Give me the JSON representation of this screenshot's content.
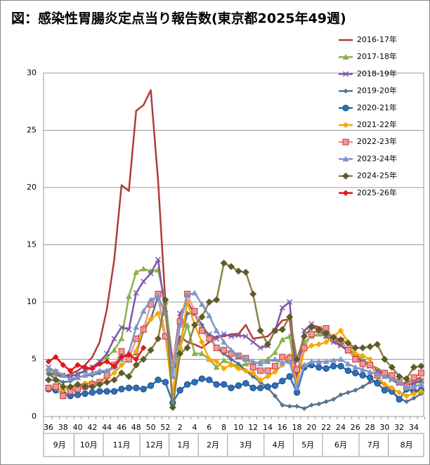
{
  "chart_data": {
    "type": "line",
    "title": "図：感染性胃腸炎定点当り報告数(東京都2025年49週)",
    "categories": [
      "36",
      null,
      "38",
      null,
      "40",
      null,
      "42",
      null,
      "44",
      null,
      "46",
      null,
      "48",
      null,
      "50",
      null,
      "52",
      null,
      "2",
      null,
      "4",
      null,
      "6",
      null,
      "8",
      null,
      "10",
      null,
      "12",
      null,
      "14",
      null,
      "16",
      null,
      "18",
      null,
      "20",
      null,
      "22",
      null,
      "24",
      null,
      "26",
      null,
      "28",
      null,
      "30",
      null,
      "32",
      null,
      "34",
      null
    ],
    "months": [
      "9月",
      "10月",
      "11月",
      "12月",
      "1月",
      "2月",
      "3月",
      "4月",
      "5月",
      "6月",
      "7月",
      "8月"
    ],
    "ylim": [
      0,
      30
    ],
    "yticks": [
      0,
      5,
      10,
      15,
      20,
      25,
      30
    ],
    "grid": true,
    "legend": "right",
    "series": [
      {
        "name": "2016-17年",
        "color": "#b03c3c",
        "marker": "none",
        "values": [
          3.8,
          3.6,
          3.5,
          3.7,
          4.0,
          4.5,
          5.2,
          6.5,
          9.4,
          13.7,
          20.2,
          19.7,
          26.7,
          27.2,
          28.5,
          20.6,
          10.0,
          4.8,
          7.0,
          6.5,
          6.3,
          6.0,
          6.5,
          7.0,
          7.0,
          7.2,
          7.2,
          8.0,
          6.8,
          6.9,
          7.0,
          7.6,
          8.4,
          8.5,
          3.5,
          7.5,
          8.0,
          7.8,
          7.2,
          6.9,
          6.4,
          5.9,
          5.4,
          5.0,
          4.5,
          4.2,
          3.8,
          3.3,
          2.8,
          3.0,
          3.2,
          3.4
        ]
      },
      {
        "name": "2017-18年",
        "color": "#8db14a",
        "marker": "triangle",
        "values": [
          4.0,
          3.8,
          3.6,
          3.5,
          3.7,
          4.0,
          4.3,
          4.7,
          5.2,
          5.8,
          6.8,
          10.5,
          12.6,
          12.9,
          12.7,
          12.8,
          10.0,
          4.5,
          6.0,
          8.0,
          5.5,
          5.5,
          5.0,
          4.3,
          4.9,
          4.6,
          4.4,
          4.6,
          4.6,
          4.8,
          5.0,
          5.6,
          6.7,
          7.0,
          3.0,
          6.5,
          7.0,
          7.2,
          7.0,
          6.7,
          6.3,
          5.8,
          5.4,
          5.0,
          4.5,
          4.1,
          3.8,
          3.4,
          3.0,
          2.8,
          3.0,
          3.2
        ]
      },
      {
        "name": "2018-19年",
        "color": "#7e57a8",
        "marker": "x",
        "values": [
          4.3,
          3.9,
          3.6,
          3.5,
          3.7,
          4.0,
          4.3,
          4.8,
          5.5,
          6.8,
          7.8,
          7.6,
          10.8,
          11.8,
          12.5,
          13.7,
          9.0,
          4.5,
          9.0,
          10.0,
          9.0,
          7.5,
          7.2,
          6.8,
          7.2,
          7.0,
          7.1,
          7.0,
          6.5,
          6.0,
          6.2,
          7.5,
          9.5,
          10.0,
          3.0,
          7.5,
          8.1,
          7.5,
          7.0,
          6.5,
          6.2,
          5.7,
          5.2,
          4.8,
          4.4,
          4.0,
          3.6,
          3.2,
          2.9,
          2.7,
          2.9,
          3.1
        ]
      },
      {
        "name": "2019-20年",
        "color": "#56738f",
        "marker": "smalldiamond",
        "values": [
          3.7,
          3.3,
          3.0,
          3.1,
          3.4,
          3.6,
          3.6,
          3.8,
          4.0,
          4.4,
          5.3,
          5.2,
          5.5,
          7.5,
          8.5,
          10.5,
          7.0,
          2.0,
          6.5,
          9.0,
          9.0,
          8.0,
          7.0,
          6.0,
          5.5,
          5.0,
          4.6,
          4.0,
          3.5,
          3.0,
          2.5,
          1.8,
          1.0,
          0.9,
          0.9,
          0.7,
          1.0,
          1.1,
          1.3,
          1.5,
          1.9,
          2.1,
          2.3,
          2.6,
          3.0,
          3.1,
          2.8,
          2.2,
          1.6,
          1.3,
          1.6,
          2.0
        ]
      },
      {
        "name": "2020-21年",
        "color": "#2e6fb7",
        "marker": "circle",
        "values": [
          2.4,
          2.3,
          2.0,
          1.8,
          1.9,
          2.0,
          2.1,
          2.2,
          2.2,
          2.2,
          2.4,
          2.5,
          2.5,
          2.4,
          2.7,
          3.2,
          3.0,
          1.2,
          2.3,
          2.8,
          3.0,
          3.3,
          3.2,
          2.8,
          2.8,
          2.5,
          2.7,
          2.9,
          2.5,
          2.5,
          2.6,
          2.7,
          3.1,
          3.5,
          2.1,
          4.3,
          4.5,
          4.3,
          4.2,
          4.4,
          4.4,
          4.0,
          3.8,
          3.6,
          3.4,
          2.9,
          2.3,
          2.2,
          1.5,
          2.4,
          2.2,
          2.3
        ]
      },
      {
        "name": "2021-22年",
        "color": "#f5a800",
        "marker": "diamond",
        "values": [
          2.5,
          2.5,
          2.3,
          2.5,
          2.7,
          2.9,
          3.0,
          3.0,
          3.4,
          3.8,
          4.5,
          5.0,
          5.7,
          7.8,
          8.5,
          9.0,
          7.0,
          2.0,
          6.0,
          10.0,
          8.0,
          6.5,
          5.0,
          4.8,
          4.2,
          4.5,
          4.2,
          4.0,
          3.8,
          3.2,
          3.5,
          3.9,
          4.5,
          5.3,
          3.0,
          5.8,
          6.2,
          6.3,
          6.5,
          7.0,
          7.5,
          6.5,
          5.5,
          5.3,
          5.0,
          3.5,
          2.8,
          2.5,
          2.1,
          1.8,
          2.0,
          2.2
        ]
      },
      {
        "name": "2022-23年",
        "color": "#e89a9a",
        "marker": "square",
        "values": [
          2.5,
          2.6,
          1.8,
          2.2,
          2.4,
          2.6,
          2.8,
          3.0,
          3.6,
          4.5,
          5.7,
          5.0,
          6.8,
          7.6,
          9.8,
          10.7,
          7.0,
          4.5,
          8.3,
          10.7,
          9.2,
          7.5,
          6.8,
          6.0,
          5.8,
          5.5,
          5.3,
          5.1,
          4.3,
          4.0,
          4.0,
          4.4,
          5.2,
          5.1,
          4.1,
          6.0,
          7.2,
          7.6,
          7.7,
          6.8,
          6.6,
          5.8,
          5.0,
          4.6,
          4.5,
          3.6,
          3.8,
          3.6,
          3.0,
          2.6,
          3.4,
          3.8
        ]
      },
      {
        "name": "2023-24年",
        "color": "#7f96c6",
        "marker": "triangle",
        "values": [
          4.2,
          4.0,
          3.6,
          3.3,
          3.4,
          3.6,
          3.8,
          4.0,
          4.0,
          4.3,
          5.0,
          5.6,
          7.8,
          9.2,
          10.2,
          10.5,
          9.0,
          3.5,
          8.0,
          10.6,
          10.8,
          9.8,
          8.8,
          7.5,
          6.5,
          5.8,
          5.3,
          5.0,
          4.8,
          4.6,
          4.8,
          5.0,
          4.7,
          4.8,
          2.5,
          4.5,
          4.8,
          4.8,
          4.8,
          4.9,
          5.0,
          4.6,
          4.3,
          4.1,
          3.9,
          3.7,
          3.5,
          3.3,
          3.0,
          2.5,
          2.6,
          2.8
        ]
      },
      {
        "name": "2024-25年",
        "color": "#8b8246",
        "marker": "bigdiamond",
        "values": [
          3.2,
          3.2,
          2.6,
          2.6,
          2.8,
          2.6,
          2.6,
          2.8,
          3.0,
          3.2,
          3.8,
          3.5,
          4.5,
          5.0,
          5.8,
          6.8,
          10.2,
          0.8,
          5.5,
          6.0,
          8.0,
          8.7,
          10.0,
          10.2,
          13.4,
          13.1,
          12.7,
          12.6,
          10.7,
          7.5,
          6.3,
          7.5,
          7.6,
          8.7,
          5.0,
          7.0,
          7.8,
          7.6,
          7.3,
          6.9,
          6.7,
          6.4,
          6.0,
          6.0,
          6.1,
          6.3,
          5.0,
          4.3,
          3.5,
          3.3,
          4.3,
          4.4
        ]
      },
      {
        "name": "2025-26年",
        "color": "#e3161b",
        "marker": "diamond",
        "values": [
          4.8,
          5.2,
          4.5,
          4.0,
          4.5,
          4.3,
          4.2,
          4.6,
          4.8,
          4.4,
          5.2,
          5.4,
          5.0,
          6.0,
          null,
          null,
          null,
          null,
          null,
          null,
          null,
          null,
          null,
          null,
          null,
          null,
          null,
          null,
          null,
          null,
          null,
          null,
          null,
          null,
          null,
          null,
          null,
          null,
          null,
          null,
          null,
          null,
          null,
          null,
          null,
          null,
          null,
          null,
          null,
          null,
          null,
          null
        ]
      }
    ]
  }
}
